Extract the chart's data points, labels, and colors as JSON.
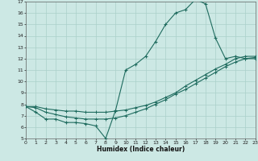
{
  "xlabel": "Humidex (Indice chaleur)",
  "bg_color": "#cce8e4",
  "grid_color": "#aad0ca",
  "line_color": "#1e6b5e",
  "line1_x": [
    0,
    1,
    2,
    3,
    4,
    5,
    6,
    7,
    8,
    9,
    10,
    11,
    12,
    13,
    14,
    15,
    16,
    17,
    18,
    19,
    20,
    21,
    22,
    23
  ],
  "line1_y": [
    7.8,
    7.3,
    6.7,
    6.7,
    6.4,
    6.4,
    6.3,
    6.1,
    5.0,
    7.5,
    11.0,
    11.5,
    12.2,
    13.5,
    15.0,
    16.0,
    16.3,
    17.2,
    16.8,
    13.8,
    12.0,
    12.2,
    12.0,
    12.0
  ],
  "line2_x": [
    0,
    1,
    2,
    3,
    4,
    5,
    6,
    7,
    8,
    9,
    10,
    11,
    12,
    13,
    14,
    15,
    16,
    17,
    18,
    19,
    20,
    21,
    22,
    23
  ],
  "line2_y": [
    7.8,
    7.8,
    7.6,
    7.5,
    7.4,
    7.4,
    7.3,
    7.3,
    7.3,
    7.4,
    7.5,
    7.7,
    7.9,
    8.2,
    8.6,
    9.0,
    9.6,
    10.1,
    10.6,
    11.1,
    11.5,
    12.0,
    12.2,
    12.2
  ],
  "line3_x": [
    0,
    1,
    2,
    3,
    4,
    5,
    6,
    7,
    8,
    9,
    10,
    11,
    12,
    13,
    14,
    15,
    16,
    17,
    18,
    19,
    20,
    21,
    22,
    23
  ],
  "line3_y": [
    7.8,
    7.7,
    7.3,
    7.1,
    6.9,
    6.8,
    6.7,
    6.7,
    6.7,
    6.8,
    7.0,
    7.3,
    7.6,
    8.0,
    8.4,
    8.9,
    9.3,
    9.8,
    10.3,
    10.8,
    11.3,
    11.7,
    12.0,
    12.1
  ],
  "xmin": 0,
  "xmax": 23,
  "ymin": 5,
  "ymax": 17,
  "xtick_step": 1,
  "ytick_step": 1
}
